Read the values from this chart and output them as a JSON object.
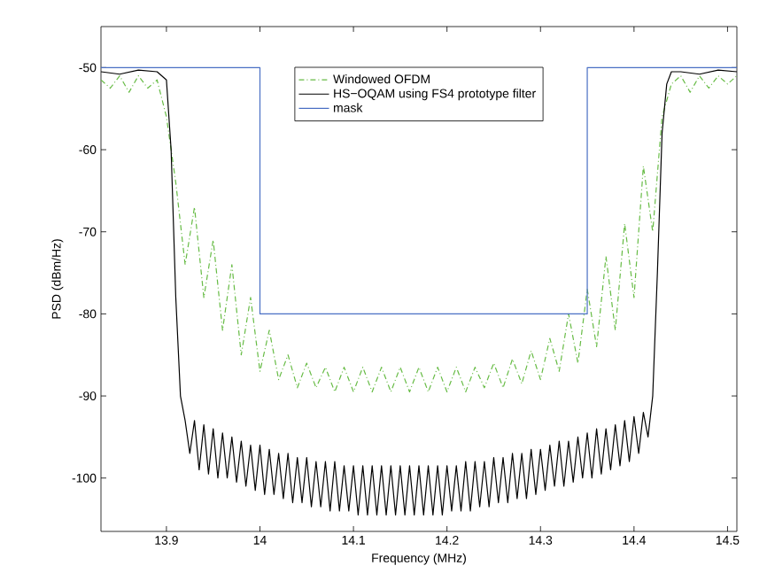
{
  "chart_data": {
    "type": "line",
    "xlabel": "Frequency (MHz)",
    "ylabel": "PSD (dBm/Hz)",
    "xlim": [
      13.83,
      14.51
    ],
    "ylim": [
      -106.5,
      -45
    ],
    "xticks": [
      13.9,
      14,
      14.1,
      14.2,
      14.3,
      14.4,
      14.5
    ],
    "yticks": [
      -100,
      -90,
      -80,
      -70,
      -60,
      -50
    ],
    "legend": "top",
    "grid": false,
    "series": [
      {
        "name": "Windowed OFDM",
        "color": "#66bb44",
        "line_style": "dashed",
        "x": [
          13.83,
          13.84,
          13.85,
          13.86,
          13.87,
          13.88,
          13.89,
          13.9,
          13.91,
          13.92,
          13.93,
          13.94,
          13.95,
          13.96,
          13.97,
          13.98,
          13.99,
          14.0,
          14.01,
          14.02,
          14.03,
          14.04,
          14.05,
          14.06,
          14.07,
          14.08,
          14.09,
          14.1,
          14.11,
          14.12,
          14.13,
          14.14,
          14.15,
          14.16,
          14.17,
          14.18,
          14.19,
          14.2,
          14.21,
          14.22,
          14.23,
          14.24,
          14.25,
          14.26,
          14.27,
          14.28,
          14.29,
          14.3,
          14.31,
          14.32,
          14.33,
          14.34,
          14.35,
          14.36,
          14.37,
          14.38,
          14.39,
          14.4,
          14.41,
          14.42,
          14.43,
          14.44,
          14.45,
          14.46,
          14.47,
          14.48,
          14.49,
          14.5,
          14.51
        ],
        "values": [
          -51.5,
          -52.5,
          -51,
          -53,
          -51,
          -52.5,
          -51.5,
          -56,
          -64,
          -74,
          -67,
          -78,
          -71,
          -82,
          -74,
          -85,
          -78,
          -87,
          -82,
          -88,
          -85,
          -89,
          -86,
          -89,
          -86.5,
          -89.5,
          -86.5,
          -89.5,
          -86.5,
          -89.5,
          -86.5,
          -89.5,
          -86.5,
          -89.5,
          -86.5,
          -89.5,
          -86.5,
          -89.5,
          -86.5,
          -89.5,
          -86.5,
          -89,
          -86,
          -89,
          -85.5,
          -88.5,
          -84.5,
          -88,
          -83,
          -87,
          -80,
          -86,
          -77,
          -84,
          -73,
          -82,
          -69,
          -78,
          -62,
          -70,
          -56,
          -52,
          -51,
          -53,
          -51,
          -52.5,
          -51,
          -52,
          -51
        ]
      },
      {
        "name": "HS−OQAM using FS4 prototype filter",
        "color": "#000000",
        "line_style": "solid",
        "x": [
          13.83,
          13.85,
          13.87,
          13.89,
          13.9,
          13.905,
          13.91,
          13.915,
          13.92,
          13.925,
          13.93,
          13.935,
          13.94,
          13.945,
          13.95,
          13.955,
          13.96,
          13.965,
          13.97,
          13.975,
          13.98,
          13.985,
          13.99,
          13.995,
          14.0,
          14.005,
          14.01,
          14.015,
          14.02,
          14.025,
          14.03,
          14.035,
          14.04,
          14.045,
          14.05,
          14.055,
          14.06,
          14.065,
          14.07,
          14.075,
          14.08,
          14.085,
          14.09,
          14.095,
          14.1,
          14.105,
          14.11,
          14.115,
          14.12,
          14.125,
          14.13,
          14.135,
          14.14,
          14.145,
          14.15,
          14.155,
          14.16,
          14.165,
          14.17,
          14.175,
          14.18,
          14.185,
          14.19,
          14.195,
          14.2,
          14.205,
          14.21,
          14.215,
          14.22,
          14.225,
          14.23,
          14.235,
          14.24,
          14.245,
          14.25,
          14.255,
          14.26,
          14.265,
          14.27,
          14.275,
          14.28,
          14.285,
          14.29,
          14.295,
          14.3,
          14.305,
          14.31,
          14.315,
          14.32,
          14.325,
          14.33,
          14.335,
          14.34,
          14.345,
          14.35,
          14.355,
          14.36,
          14.365,
          14.37,
          14.375,
          14.38,
          14.385,
          14.39,
          14.395,
          14.4,
          14.405,
          14.41,
          14.415,
          14.42,
          14.425,
          14.43,
          14.435,
          14.44,
          14.45,
          14.47,
          14.49,
          14.51
        ],
        "values": [
          -50.5,
          -50.8,
          -50.3,
          -50.5,
          -51.5,
          -60,
          -78,
          -90,
          -93,
          -97,
          -93,
          -99,
          -93.5,
          -99.5,
          -94,
          -100,
          -94.5,
          -100,
          -95,
          -100.5,
          -95.5,
          -101,
          -96,
          -101.5,
          -96,
          -102,
          -96.5,
          -102,
          -97,
          -102.5,
          -97,
          -103,
          -97.5,
          -103,
          -97.5,
          -103.5,
          -98,
          -103.5,
          -98,
          -104,
          -98,
          -104,
          -98.5,
          -104,
          -98.5,
          -104.5,
          -98.5,
          -104.5,
          -98.5,
          -104.5,
          -98.5,
          -104.5,
          -98.5,
          -104.5,
          -98.5,
          -104.5,
          -98.5,
          -104.5,
          -98.5,
          -104.5,
          -98.5,
          -104.5,
          -98.5,
          -104.5,
          -98.5,
          -104,
          -98.5,
          -104,
          -98,
          -104,
          -98,
          -103.5,
          -98,
          -103.5,
          -97.5,
          -103,
          -97.5,
          -103,
          -97,
          -102.5,
          -97,
          -102.5,
          -96.5,
          -102,
          -96.5,
          -101.5,
          -96,
          -101,
          -95.5,
          -101,
          -95.5,
          -100.5,
          -95,
          -100,
          -94.5,
          -100,
          -94,
          -99.5,
          -94,
          -99,
          -93.5,
          -98.5,
          -93,
          -98,
          -92.5,
          -97,
          -92,
          -95,
          -90,
          -75,
          -58,
          -52,
          -50.5,
          -50.5,
          -50.8,
          -50.3,
          -50.5
        ]
      },
      {
        "name": "mask",
        "color": "#4a6fc4",
        "line_style": "solid",
        "x": [
          13.83,
          14.0,
          14.0,
          14.35,
          14.35,
          14.51
        ],
        "values": [
          -50,
          -50,
          -80,
          -80,
          -50,
          -50
        ]
      }
    ]
  }
}
